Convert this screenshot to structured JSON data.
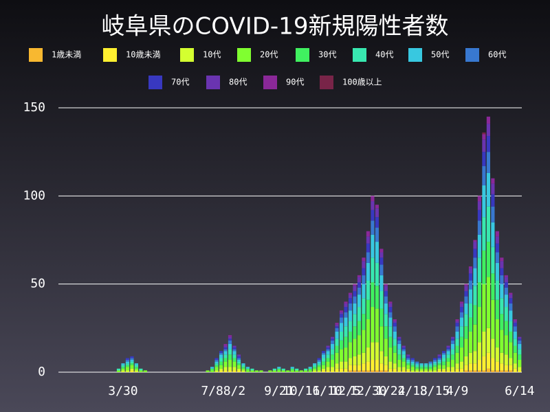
{
  "chart_data": {
    "type": "stacked_bar",
    "title": "岐阜県のCOVID-19新規陽性者数",
    "categories": [
      null,
      null,
      null,
      null,
      null,
      null,
      null,
      null,
      null,
      null,
      null,
      null,
      null,
      null,
      "3/30",
      null,
      null,
      null,
      null,
      null,
      null,
      null,
      null,
      null,
      null,
      null,
      null,
      null,
      null,
      null,
      null,
      null,
      null,
      null,
      "7/8",
      null,
      null,
      null,
      null,
      "8/2",
      null,
      null,
      null,
      null,
      null,
      null,
      null,
      null,
      null,
      "9/21",
      null,
      null,
      null,
      null,
      "10/16",
      null,
      null,
      null,
      null,
      "11/10",
      null,
      null,
      null,
      null,
      "12/5",
      null,
      null,
      null,
      null,
      "12/30",
      null,
      null,
      null,
      null,
      "1/24",
      null,
      null,
      null,
      null,
      "2/18",
      null,
      null,
      null,
      null,
      "3/15",
      null,
      null,
      null,
      null,
      "4/9",
      null,
      null,
      null,
      null,
      null,
      null,
      null,
      null,
      null,
      null,
      null,
      null,
      null,
      "6/14"
    ],
    "ylim": [
      0,
      150
    ],
    "yticks": [
      0,
      50,
      100,
      150
    ],
    "grid": true,
    "series": [
      {
        "name": "1歳未満",
        "color": "#f8b830",
        "values": [
          0,
          0,
          0,
          0,
          0,
          0,
          0,
          0,
          0,
          0,
          0,
          0,
          0,
          0,
          0,
          0,
          0,
          0,
          0,
          0,
          0,
          0,
          0,
          0,
          0,
          0,
          0,
          0,
          0,
          0,
          0,
          0,
          0,
          0,
          0,
          0,
          0,
          0,
          0,
          0,
          0,
          0,
          0,
          0,
          0,
          0,
          0,
          0,
          0,
          0,
          0,
          0,
          0,
          0,
          0,
          0,
          0,
          0,
          0,
          0,
          0,
          0,
          0,
          0,
          0,
          1,
          1,
          1,
          1,
          1,
          1,
          1,
          1,
          1,
          0,
          0,
          0,
          0,
          0,
          0,
          0,
          0,
          0,
          0,
          0,
          0,
          0,
          0,
          0,
          0,
          0,
          1,
          1,
          1,
          1,
          1,
          2,
          1,
          1,
          1,
          1,
          1,
          0,
          0
        ]
      },
      {
        "name": "10歳未満",
        "color": "#fff030",
        "values": [
          0,
          0,
          0,
          0,
          0,
          0,
          0,
          0,
          0,
          0,
          0,
          0,
          0,
          0,
          0,
          0,
          1,
          0,
          0,
          0,
          0,
          0,
          0,
          0,
          0,
          0,
          0,
          0,
          0,
          0,
          0,
          0,
          0,
          0,
          0,
          0,
          1,
          1,
          1,
          1,
          1,
          0,
          0,
          0,
          0,
          0,
          0,
          0,
          0,
          0,
          0,
          0,
          0,
          0,
          0,
          0,
          0,
          0,
          0,
          1,
          1,
          1,
          2,
          2,
          2,
          3,
          3,
          3,
          4,
          5,
          6,
          6,
          4,
          3,
          2,
          2,
          1,
          1,
          1,
          0,
          0,
          0,
          0,
          0,
          0,
          1,
          1,
          1,
          1,
          2,
          2,
          3,
          4,
          4,
          6,
          8,
          9,
          7,
          5,
          4,
          3,
          3,
          2,
          1
        ]
      },
      {
        "name": "10代",
        "color": "#d4ff30",
        "values": [
          0,
          0,
          0,
          0,
          0,
          0,
          0,
          0,
          0,
          0,
          0,
          0,
          0,
          0,
          1,
          1,
          1,
          1,
          0,
          0,
          0,
          0,
          0,
          0,
          0,
          0,
          0,
          0,
          0,
          0,
          0,
          0,
          0,
          0,
          0,
          1,
          1,
          2,
          2,
          2,
          1,
          1,
          0,
          0,
          0,
          0,
          0,
          0,
          0,
          0,
          0,
          0,
          0,
          0,
          0,
          0,
          0,
          1,
          1,
          1,
          2,
          2,
          3,
          4,
          4,
          4,
          5,
          6,
          6,
          8,
          10,
          10,
          7,
          5,
          4,
          3,
          2,
          2,
          1,
          1,
          1,
          1,
          1,
          1,
          1,
          1,
          1,
          2,
          2,
          3,
          4,
          5,
          6,
          7,
          10,
          14,
          14,
          11,
          8,
          6,
          6,
          4,
          3,
          2
        ]
      },
      {
        "name": "20代",
        "color": "#80ff30",
        "values": [
          0,
          0,
          0,
          0,
          0,
          0,
          0,
          0,
          0,
          0,
          0,
          0,
          0,
          1,
          1,
          2,
          2,
          1,
          1,
          1,
          0,
          0,
          0,
          0,
          0,
          0,
          0,
          0,
          0,
          0,
          0,
          0,
          0,
          1,
          1,
          2,
          2,
          3,
          4,
          3,
          2,
          1,
          1,
          1,
          1,
          1,
          0,
          1,
          1,
          1,
          1,
          1,
          1,
          1,
          1,
          1,
          1,
          1,
          2,
          2,
          3,
          4,
          6,
          7,
          8,
          9,
          10,
          11,
          13,
          16,
          20,
          19,
          14,
          10,
          8,
          6,
          4,
          3,
          2,
          2,
          1,
          1,
          1,
          1,
          2,
          2,
          2,
          3,
          4,
          6,
          8,
          10,
          12,
          15,
          20,
          27,
          29,
          22,
          16,
          13,
          11,
          9,
          6,
          4
        ]
      },
      {
        "name": "30代",
        "color": "#40f060",
        "values": [
          0,
          0,
          0,
          0,
          0,
          0,
          0,
          0,
          0,
          0,
          0,
          0,
          0,
          0,
          1,
          1,
          1,
          1,
          0,
          0,
          0,
          0,
          0,
          0,
          0,
          0,
          0,
          0,
          0,
          0,
          0,
          0,
          0,
          0,
          1,
          1,
          2,
          2,
          3,
          2,
          1,
          1,
          1,
          0,
          0,
          0,
          0,
          0,
          0,
          1,
          0,
          0,
          1,
          0,
          0,
          0,
          1,
          1,
          1,
          2,
          2,
          3,
          4,
          5,
          6,
          6,
          7,
          8,
          9,
          11,
          14,
          13,
          10,
          7,
          6,
          4,
          3,
          2,
          1,
          1,
          1,
          1,
          1,
          1,
          1,
          1,
          2,
          2,
          3,
          4,
          6,
          7,
          8,
          11,
          14,
          19,
          20,
          15,
          11,
          9,
          8,
          6,
          4,
          3
        ]
      },
      {
        "name": "40代",
        "color": "#38e8b0",
        "values": [
          0,
          0,
          0,
          0,
          0,
          0,
          0,
          0,
          0,
          0,
          0,
          0,
          0,
          1,
          1,
          1,
          1,
          1,
          1,
          0,
          0,
          0,
          0,
          0,
          0,
          0,
          0,
          0,
          0,
          0,
          0,
          0,
          0,
          0,
          0,
          1,
          2,
          2,
          3,
          2,
          1,
          1,
          0,
          1,
          0,
          0,
          0,
          0,
          1,
          0,
          1,
          0,
          0,
          1,
          0,
          1,
          0,
          1,
          1,
          2,
          2,
          3,
          4,
          5,
          6,
          6,
          7,
          8,
          9,
          11,
          14,
          13,
          10,
          7,
          6,
          4,
          3,
          2,
          1,
          1,
          1,
          1,
          1,
          1,
          1,
          1,
          2,
          2,
          3,
          4,
          6,
          7,
          8,
          11,
          14,
          19,
          20,
          15,
          11,
          9,
          8,
          6,
          4,
          3
        ]
      },
      {
        "name": "50代",
        "color": "#38c8e0",
        "values": [
          0,
          0,
          0,
          0,
          0,
          0,
          0,
          0,
          0,
          0,
          0,
          0,
          0,
          0,
          1,
          1,
          1,
          1,
          0,
          0,
          0,
          0,
          0,
          0,
          0,
          0,
          0,
          0,
          0,
          0,
          0,
          0,
          0,
          0,
          1,
          1,
          2,
          2,
          3,
          2,
          1,
          1,
          1,
          0,
          0,
          0,
          0,
          0,
          0,
          1,
          0,
          0,
          1,
          0,
          0,
          0,
          1,
          1,
          1,
          2,
          2,
          3,
          4,
          5,
          5,
          6,
          6,
          7,
          8,
          10,
          13,
          12,
          9,
          6,
          5,
          4,
          3,
          2,
          1,
          1,
          1,
          1,
          1,
          1,
          1,
          1,
          2,
          2,
          3,
          4,
          5,
          6,
          8,
          10,
          13,
          18,
          19,
          14,
          10,
          8,
          7,
          6,
          4,
          3
        ]
      },
      {
        "name": "60代",
        "color": "#3878d0",
        "values": [
          0,
          0,
          0,
          0,
          0,
          0,
          0,
          0,
          0,
          0,
          0,
          0,
          0,
          0,
          0,
          1,
          1,
          0,
          0,
          0,
          0,
          0,
          0,
          0,
          0,
          0,
          0,
          0,
          0,
          0,
          0,
          0,
          0,
          0,
          0,
          1,
          1,
          1,
          2,
          1,
          1,
          0,
          0,
          0,
          0,
          0,
          0,
          0,
          0,
          0,
          0,
          0,
          0,
          0,
          0,
          0,
          0,
          0,
          1,
          1,
          1,
          2,
          2,
          3,
          3,
          4,
          4,
          4,
          5,
          6,
          8,
          8,
          6,
          4,
          3,
          3,
          2,
          1,
          1,
          1,
          1,
          0,
          0,
          1,
          1,
          1,
          1,
          1,
          2,
          3,
          3,
          4,
          5,
          6,
          8,
          11,
          12,
          9,
          6,
          5,
          4,
          4,
          3,
          2
        ]
      },
      {
        "name": "70代",
        "color": "#3838c0",
        "values": [
          0,
          0,
          0,
          0,
          0,
          0,
          0,
          0,
          0,
          0,
          0,
          0,
          0,
          0,
          0,
          1,
          1,
          0,
          0,
          0,
          0,
          0,
          0,
          0,
          0,
          0,
          0,
          0,
          0,
          0,
          0,
          0,
          0,
          0,
          0,
          1,
          1,
          1,
          1,
          1,
          1,
          0,
          0,
          0,
          0,
          0,
          0,
          0,
          0,
          0,
          0,
          0,
          0,
          0,
          0,
          0,
          0,
          0,
          1,
          1,
          1,
          1,
          1,
          2,
          3,
          3,
          3,
          3,
          4,
          5,
          6,
          6,
          4,
          3,
          3,
          2,
          1,
          1,
          1,
          1,
          0,
          0,
          0,
          0,
          1,
          1,
          1,
          1,
          1,
          2,
          3,
          3,
          4,
          5,
          6,
          8,
          9,
          7,
          5,
          4,
          3,
          3,
          2,
          1
        ]
      },
      {
        "name": "80代",
        "color": "#6a34b0",
        "values": [
          0,
          0,
          0,
          0,
          0,
          0,
          0,
          0,
          0,
          0,
          0,
          0,
          0,
          0,
          0,
          0,
          0,
          0,
          0,
          0,
          0,
          0,
          0,
          0,
          0,
          0,
          0,
          0,
          0,
          0,
          0,
          0,
          0,
          0,
          0,
          0,
          0,
          1,
          1,
          1,
          1,
          0,
          0,
          0,
          0,
          0,
          0,
          0,
          0,
          0,
          0,
          0,
          0,
          0,
          0,
          0,
          0,
          0,
          0,
          0,
          1,
          1,
          1,
          1,
          2,
          2,
          3,
          3,
          4,
          4,
          5,
          5,
          3,
          3,
          2,
          1,
          1,
          1,
          1,
          0,
          0,
          0,
          0,
          0,
          0,
          1,
          0,
          1,
          1,
          1,
          2,
          3,
          3,
          4,
          5,
          7,
          7,
          6,
          4,
          4,
          3,
          2,
          1,
          1
        ]
      },
      {
        "name": "90代",
        "color": "#8a2898",
        "values": [
          0,
          0,
          0,
          0,
          0,
          0,
          0,
          0,
          0,
          0,
          0,
          0,
          0,
          0,
          0,
          0,
          0,
          0,
          0,
          0,
          0,
          0,
          0,
          0,
          0,
          0,
          0,
          0,
          0,
          0,
          0,
          0,
          0,
          0,
          0,
          0,
          0,
          1,
          1,
          0,
          0,
          0,
          0,
          0,
          0,
          0,
          0,
          0,
          0,
          0,
          0,
          0,
          0,
          0,
          0,
          0,
          0,
          0,
          0,
          0,
          0,
          0,
          1,
          1,
          1,
          1,
          1,
          1,
          2,
          3,
          3,
          2,
          2,
          1,
          1,
          1,
          0,
          0,
          0,
          0,
          0,
          0,
          0,
          0,
          0,
          0,
          0,
          0,
          0,
          1,
          1,
          1,
          1,
          1,
          3,
          3,
          4,
          3,
          3,
          2,
          1,
          1,
          1,
          0
        ]
      },
      {
        "name": "100歳以上",
        "color": "#782448",
        "values": [
          0,
          0,
          0,
          0,
          0,
          0,
          0,
          0,
          0,
          0,
          0,
          0,
          0,
          0,
          0,
          0,
          0,
          0,
          0,
          0,
          0,
          0,
          0,
          0,
          0,
          0,
          0,
          0,
          0,
          0,
          0,
          0,
          0,
          0,
          0,
          0,
          0,
          0,
          0,
          0,
          0,
          0,
          0,
          0,
          0,
          0,
          0,
          0,
          0,
          0,
          0,
          0,
          0,
          0,
          0,
          0,
          0,
          0,
          0,
          0,
          0,
          0,
          0,
          0,
          0,
          0,
          0,
          0,
          0,
          0,
          0,
          0,
          0,
          0,
          0,
          0,
          0,
          0,
          0,
          0,
          0,
          0,
          0,
          0,
          0,
          0,
          0,
          0,
          0,
          0,
          0,
          0,
          0,
          0,
          0,
          1,
          0,
          0,
          0,
          0,
          0,
          0,
          0,
          0
        ]
      }
    ]
  }
}
